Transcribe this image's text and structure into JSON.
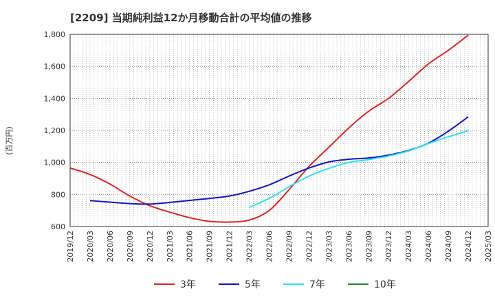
{
  "chart_data": {
    "type": "line",
    "title": "[2209]  当期純利益12か月移動合計の平均値の推移",
    "ylabel": "(百万円)",
    "ylim": [
      600,
      1800
    ],
    "yticks": [
      600,
      800,
      1000,
      1200,
      1400,
      1600,
      1800
    ],
    "ytick_labels": [
      "600",
      "800",
      "1,000",
      "1,200",
      "1,400",
      "1,600",
      "1,800"
    ],
    "xticks": [
      "2019/12",
      "2020/03",
      "2020/06",
      "2020/09",
      "2020/12",
      "2021/03",
      "2021/06",
      "2021/09",
      "2021/12",
      "2022/03",
      "2022/06",
      "2022/09",
      "2022/12",
      "2023/03",
      "2023/06",
      "2023/09",
      "2023/12",
      "2024/03",
      "2024/06",
      "2024/09",
      "2024/12",
      "2025/03"
    ],
    "grid": true,
    "legend_position": "bottom",
    "series": [
      {
        "name": "3年",
        "color": "#dd2222",
        "x": [
          "2019/12",
          "2020/03",
          "2020/06",
          "2020/09",
          "2020/12",
          "2021/03",
          "2021/06",
          "2021/09",
          "2021/12",
          "2022/03",
          "2022/06",
          "2022/09",
          "2022/12",
          "2023/03",
          "2023/06",
          "2023/09",
          "2023/12",
          "2024/03",
          "2024/06",
          "2024/09",
          "2024/12"
        ],
        "values": [
          965,
          925,
          865,
          790,
          730,
          690,
          655,
          632,
          628,
          640,
          700,
          830,
          975,
          1095,
          1215,
          1320,
          1400,
          1505,
          1615,
          1700,
          1795
        ]
      },
      {
        "name": "5年",
        "color": "#1111cc",
        "x": [
          "2020/03",
          "2020/06",
          "2020/09",
          "2020/12",
          "2021/03",
          "2021/06",
          "2021/09",
          "2021/12",
          "2022/03",
          "2022/06",
          "2022/09",
          "2022/12",
          "2023/03",
          "2023/06",
          "2023/09",
          "2023/12",
          "2024/03",
          "2024/06",
          "2024/09",
          "2024/12"
        ],
        "values": [
          762,
          752,
          743,
          740,
          750,
          763,
          775,
          790,
          820,
          860,
          915,
          965,
          1003,
          1020,
          1028,
          1046,
          1075,
          1120,
          1195,
          1285
        ]
      },
      {
        "name": "7年",
        "color": "#22e5f0",
        "x": [
          "2022/03",
          "2022/06",
          "2022/09",
          "2022/12",
          "2023/03",
          "2023/06",
          "2023/09",
          "2023/12",
          "2024/03",
          "2024/06",
          "2024/09",
          "2024/12"
        ],
        "values": [
          720,
          775,
          848,
          915,
          963,
          1000,
          1018,
          1040,
          1072,
          1118,
          1160,
          1198
        ]
      },
      {
        "name": "10年",
        "color": "#228822",
        "x": [],
        "values": []
      }
    ]
  }
}
